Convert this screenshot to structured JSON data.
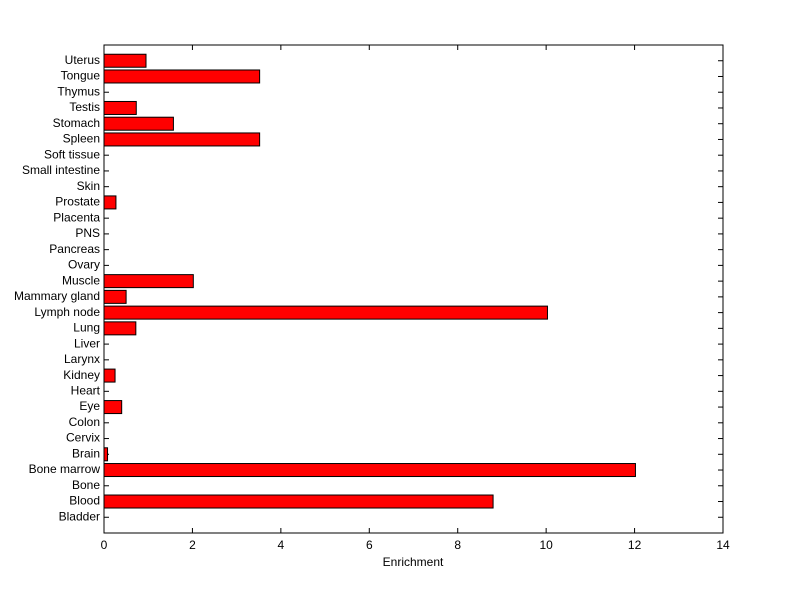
{
  "chart_data": {
    "type": "barh",
    "xlabel": "Enrichment",
    "categories": [
      "Bladder",
      "Blood",
      "Bone",
      "Bone marrow",
      "Brain",
      "Cervix",
      "Colon",
      "Eye",
      "Heart",
      "Kidney",
      "Larynx",
      "Liver",
      "Lung",
      "Lymph node",
      "Mammary gland",
      "Muscle",
      "Ovary",
      "Pancreas",
      "PNS",
      "Placenta",
      "Prostate",
      "Skin",
      "Small intestine",
      "Soft tissue",
      "Spleen",
      "Stomach",
      "Testis",
      "Thymus",
      "Tongue",
      "Uterus"
    ],
    "values": [
      0,
      8.8,
      0,
      12.02,
      0.08,
      0,
      0,
      0.4,
      0,
      0.25,
      0,
      0,
      0.72,
      10.03,
      0.5,
      2.02,
      0,
      0,
      0,
      0,
      0.27,
      0,
      0,
      0,
      3.52,
      1.57,
      0.73,
      0,
      3.52,
      0.95
    ],
    "color": "#ff0000",
    "xlim": [
      0,
      14
    ],
    "xticks": [
      0,
      2,
      4,
      6,
      8,
      10,
      12,
      14
    ]
  }
}
